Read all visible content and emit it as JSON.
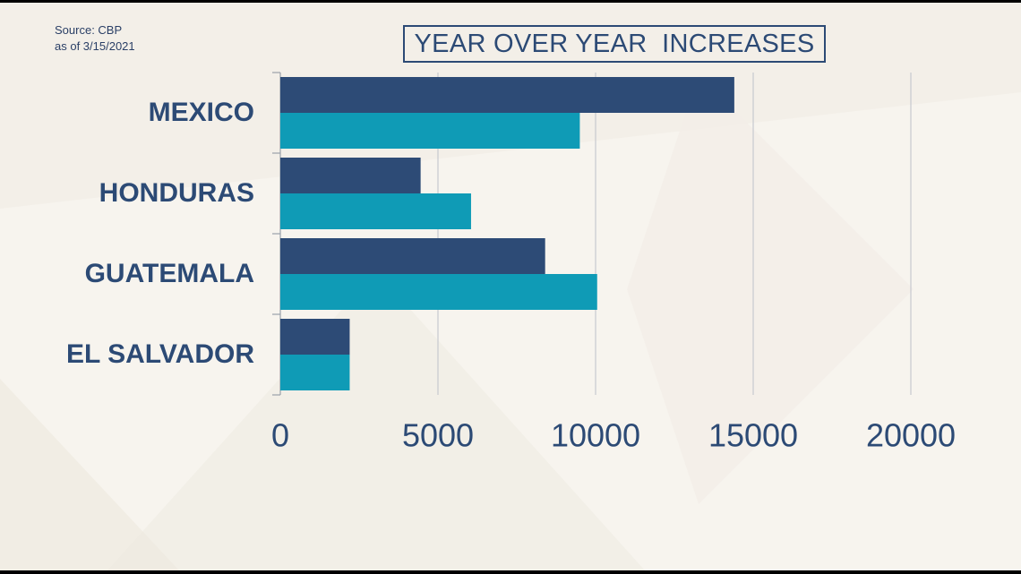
{
  "source": {
    "line1": "Source: CBP",
    "line2": "as of 3/15/2021"
  },
  "colors": {
    "series_dark": "#2d4b76",
    "series_teal": "#0f9bb6",
    "text": "#2c4a75",
    "background": "#f7f4ee",
    "grid": "#c7c9cf"
  },
  "chart_data": {
    "type": "bar",
    "orientation": "horizontal",
    "title": "YEAR OVER YEAR  INCREASES",
    "categories": [
      "MEXICO",
      "HONDURAS",
      "GUATEMALA",
      "EL SALVADOR"
    ],
    "series": [
      {
        "color": "#2d4b76",
        "values": [
          14400,
          4450,
          8400,
          2200
        ]
      },
      {
        "color": "#0f9bb6",
        "values": [
          9500,
          6050,
          10050,
          2200
        ]
      }
    ],
    "xlim": [
      0,
      20000
    ],
    "xticks": [
      "0",
      "5000",
      "10000",
      "15000",
      "20000"
    ],
    "xtick_values": [
      0,
      5000,
      10000,
      15000,
      20000
    ],
    "grid": true,
    "legend": "none",
    "xlabel": "",
    "ylabel": ""
  }
}
